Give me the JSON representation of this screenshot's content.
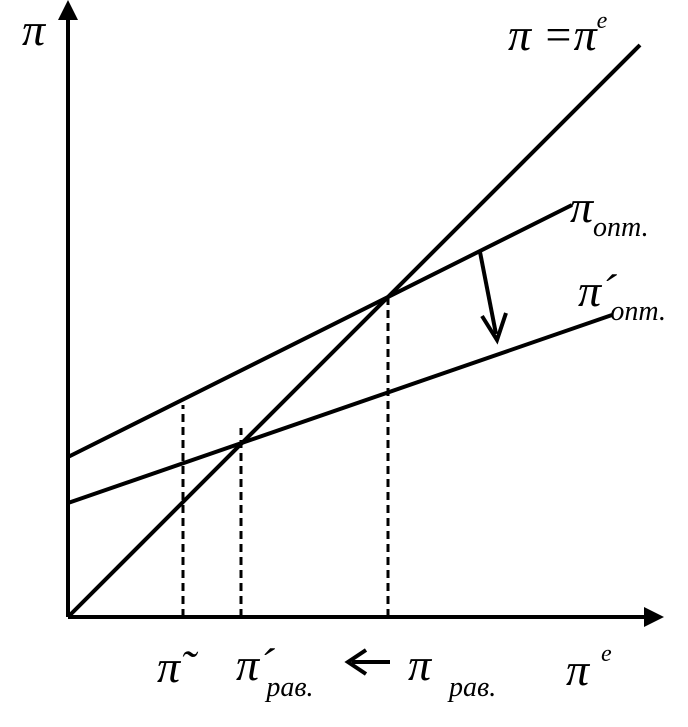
{
  "axes": {
    "y_label": "π",
    "x_label": {
      "base": "π",
      "sup": "e"
    }
  },
  "lines": [
    {
      "base": "π =π",
      "sup": "e"
    },
    {
      "base": "π",
      "sub": "опт."
    },
    {
      "base": "π´",
      "sub": "опт."
    }
  ],
  "x_marks": [
    {
      "base": "π̃"
    },
    {
      "base": "π´",
      "sub": "рав."
    },
    {
      "base": "π",
      "sub": "рав."
    }
  ]
}
